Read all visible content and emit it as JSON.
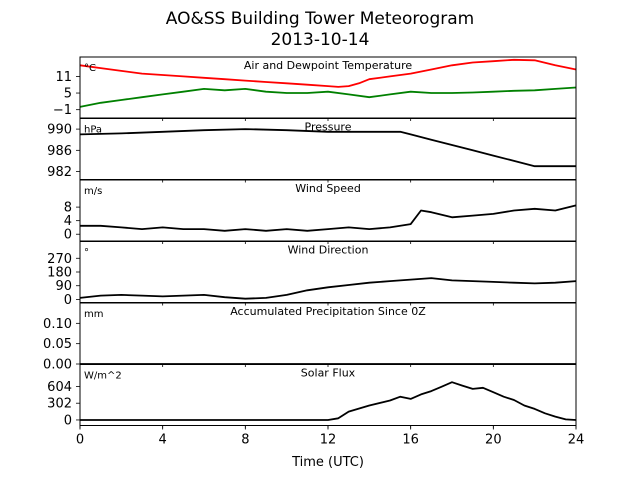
{
  "figure": {
    "title": "AO&SS Building Tower Meteorogram",
    "subtitle": "2013-10-14",
    "xlabel": "Time (UTC)"
  },
  "chart_data": {
    "type": "line",
    "x_range": [
      0,
      24
    ],
    "x_ticks": [
      0,
      4,
      8,
      12,
      16,
      20,
      24
    ],
    "x_tick_labels": [
      "0",
      "4",
      "8",
      "12",
      "16",
      "20",
      "24"
    ],
    "panels": [
      {
        "title": "Air and Dewpoint Temperature",
        "unit": "°C",
        "ylim": [
          -4,
          18
        ],
        "y_ticks": [
          -1,
          5,
          11
        ],
        "y_tick_labels": [
          "−1",
          "5",
          "11"
        ],
        "series": [
          {
            "color": "#ff0000",
            "x": [
              0,
              0.5,
              1,
              2,
              3,
              4,
              5,
              6,
              7,
              8,
              9,
              10,
              11,
              12,
              12.5,
              13,
              13.5,
              14,
              15,
              16,
              17,
              18,
              19,
              20,
              21,
              22,
              23,
              24
            ],
            "y": [
              15,
              14.5,
              14,
              13,
              12,
              11.5,
              11,
              10.5,
              10,
              9.5,
              9,
              8.5,
              8,
              7.5,
              7.2,
              7.5,
              8.5,
              10,
              11,
              12,
              13.5,
              15,
              16,
              16.5,
              17,
              16.8,
              15,
              13.5
            ]
          },
          {
            "color": "#008000",
            "x": [
              0,
              1,
              2,
              3,
              4,
              5,
              6,
              7,
              8,
              9,
              10,
              11,
              12,
              13,
              14,
              15,
              16,
              17,
              18,
              19,
              20,
              21,
              22,
              23,
              24
            ],
            "y": [
              0,
              1.5,
              2.5,
              3.5,
              4.5,
              5.5,
              6.5,
              6,
              6.5,
              5.5,
              5,
              5,
              5.5,
              4.5,
              3.5,
              4.5,
              5.5,
              5,
              5,
              5.2,
              5.5,
              5.8,
              6,
              6.5,
              7
            ]
          }
        ]
      },
      {
        "title": "Pressure",
        "unit": "hPa",
        "ylim": [
          980.5,
          992
        ],
        "y_ticks": [
          982,
          986,
          990
        ],
        "y_tick_labels": [
          "982",
          "986",
          "990"
        ],
        "series": [
          {
            "color": "#000000",
            "x": [
              0,
              2,
              4,
              6,
              8,
              10,
              12,
              14,
              15.5,
              16,
              17,
              18,
              19,
              20,
              21,
              22,
              23,
              24
            ],
            "y": [
              989,
              989.2,
              989.5,
              989.8,
              990,
              989.8,
              989.5,
              989.5,
              989.5,
              989,
              988,
              987,
              986,
              985,
              984,
              983,
              983,
              983
            ]
          }
        ]
      },
      {
        "title": "Wind Speed",
        "unit": "m/s",
        "ylim": [
          -2,
          16
        ],
        "y_ticks": [
          0,
          4,
          8
        ],
        "y_tick_labels": [
          "0",
          "4",
          "8"
        ],
        "series": [
          {
            "color": "#000000",
            "x": [
              0,
              1,
              2,
              3,
              4,
              5,
              6,
              7,
              8,
              9,
              10,
              11,
              12,
              13,
              14,
              15,
              16,
              16.5,
              17,
              18,
              19,
              20,
              21,
              22,
              23,
              24
            ],
            "y": [
              2.5,
              2.5,
              2,
              1.5,
              2,
              1.5,
              1.5,
              1,
              1.5,
              1,
              1.5,
              1,
              1.5,
              2,
              1.5,
              2,
              3,
              7,
              6.5,
              5,
              5.5,
              6,
              7,
              7.5,
              7,
              8.5
            ]
          }
        ]
      },
      {
        "title": "Wind Direction",
        "unit": "°",
        "ylim": [
          -20,
          380
        ],
        "y_ticks": [
          0,
          90,
          180,
          270
        ],
        "y_tick_labels": [
          "0",
          "90",
          "180",
          "270"
        ],
        "series": [
          {
            "color": "#000000",
            "x": [
              0,
              1,
              2,
              3,
              4,
              5,
              6,
              7,
              8,
              9,
              10,
              11,
              12,
              13,
              14,
              15,
              16,
              17,
              18,
              19,
              20,
              21,
              22,
              23,
              24
            ],
            "y": [
              10,
              25,
              30,
              25,
              20,
              25,
              30,
              15,
              5,
              10,
              30,
              60,
              80,
              95,
              110,
              120,
              130,
              140,
              125,
              120,
              115,
              110,
              105,
              110,
              120
            ]
          }
        ]
      },
      {
        "title": "Accumulated Precipitation Since 0Z",
        "unit": "mm",
        "ylim": [
          0,
          0.15
        ],
        "y_ticks": [
          0,
          0.05,
          0.1
        ],
        "y_tick_labels": [
          "0.00",
          "0.05",
          "0.10"
        ],
        "series": [
          {
            "color": "#000000",
            "x": [
              0,
              24
            ],
            "y": [
              0,
              0
            ]
          }
        ]
      },
      {
        "title": "Solar Flux",
        "unit": "W/m^2",
        "ylim": [
          -100,
          1000
        ],
        "y_ticks": [
          0,
          302,
          604
        ],
        "y_tick_labels": [
          "0",
          "302",
          "604"
        ],
        "series": [
          {
            "color": "#000000",
            "x": [
              0,
              12,
              12.5,
              13,
              14,
              15,
              15.5,
              16,
              16.5,
              17,
              17.5,
              18,
              18.5,
              19,
              19.5,
              20,
              20.5,
              21,
              21.5,
              22,
              22.5,
              23,
              23.5,
              24
            ],
            "y": [
              0,
              0,
              30,
              150,
              260,
              350,
              420,
              380,
              460,
              520,
              600,
              680,
              620,
              560,
              580,
              500,
              420,
              360,
              260,
              200,
              120,
              60,
              10,
              0
            ]
          }
        ]
      }
    ]
  }
}
